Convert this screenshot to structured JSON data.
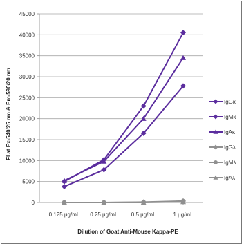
{
  "chart_data": {
    "type": "line",
    "title": "",
    "xlabel": "Dilution of Goat Anti-Mouse Kappa-PE",
    "ylabel": "Fl at Ex-540/25 nm & Em-590/20 nm",
    "categories": [
      "0.125 µg/mL",
      "0.25 µg/mL",
      "0.5 µg/mL",
      "1 µg/mL"
    ],
    "ylim": [
      0,
      45000
    ],
    "yticks": [
      "0",
      "5000",
      "10000",
      "15000",
      "20000",
      "25000",
      "30000",
      "35000",
      "40000",
      "45000"
    ],
    "grid": true,
    "legend_position": "right",
    "series": [
      {
        "name": "IgGκ",
        "values": [
          5000,
          10200,
          23000,
          40500
        ],
        "color": "#5b2d9e",
        "marker": "diamond"
      },
      {
        "name": "IgMκ",
        "values": [
          3800,
          7800,
          16500,
          27800
        ],
        "color": "#5b2d9e",
        "marker": "diamond"
      },
      {
        "name": "IgAκ",
        "values": [
          5200,
          9800,
          20000,
          34500
        ],
        "color": "#5b2d9e",
        "marker": "triangle"
      },
      {
        "name": "IgGλ",
        "values": [
          0,
          0,
          100,
          350
        ],
        "color": "#909090",
        "marker": "diamond"
      },
      {
        "name": "IgMλ",
        "values": [
          0,
          0,
          50,
          300
        ],
        "color": "#909090",
        "marker": "circle"
      },
      {
        "name": "IgAλ",
        "values": [
          0,
          0,
          0,
          150
        ],
        "color": "#909090",
        "marker": "triangle"
      }
    ]
  }
}
